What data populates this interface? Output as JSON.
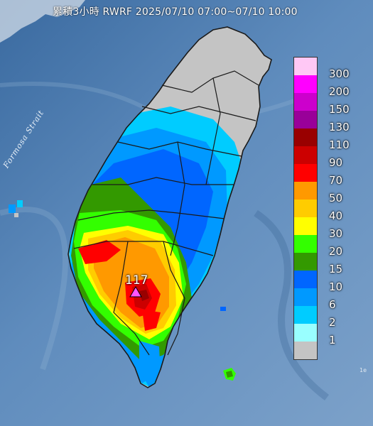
{
  "header": {
    "title": "累積3小時 RWRF 2025/07/10 07:00~07/10 10:00"
  },
  "map": {
    "sea_label": "Formosa Strait",
    "peak_value": "117",
    "peak_marker_color": "#ff55ff"
  },
  "legend": {
    "items": [
      {
        "label": "300",
        "color": "#ffc8f5"
      },
      {
        "label": "200",
        "color": "#ff00ff"
      },
      {
        "label": "150",
        "color": "#cc00cc"
      },
      {
        "label": "130",
        "color": "#990099"
      },
      {
        "label": "110",
        "color": "#990000"
      },
      {
        "label": "90",
        "color": "#cc0000"
      },
      {
        "label": "70",
        "color": "#ff0000"
      },
      {
        "label": "50",
        "color": "#ff9900"
      },
      {
        "label": "40",
        "color": "#ffcc00"
      },
      {
        "label": "30",
        "color": "#ffff00"
      },
      {
        "label": "20",
        "color": "#33ff00"
      },
      {
        "label": "15",
        "color": "#339900"
      },
      {
        "label": "10",
        "color": "#0066ff"
      },
      {
        "label": "6",
        "color": "#0099ff"
      },
      {
        "label": "2",
        "color": "#00ccff"
      },
      {
        "label": "1",
        "color": "#99ffff"
      },
      {
        "label": "",
        "color": "#c4c4c4"
      }
    ]
  }
}
